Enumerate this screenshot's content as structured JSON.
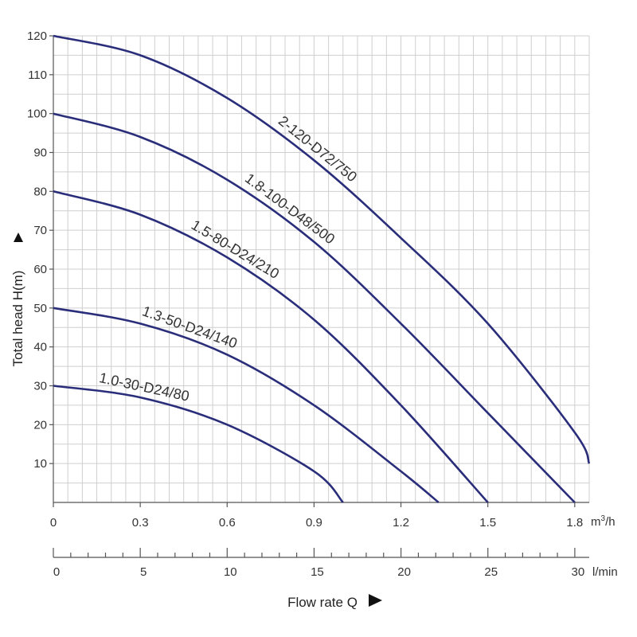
{
  "chart_data": {
    "type": "line",
    "title": "",
    "ylabel": "Total head H(m)",
    "xlabel": "Flow rate Q",
    "ylim": [
      0,
      120
    ],
    "xlim_m3h": [
      0,
      1.85
    ],
    "xlim_lmin": [
      0,
      30.83
    ],
    "y_ticks": [
      "10",
      "20",
      "30",
      "40",
      "50",
      "60",
      "70",
      "80",
      "90",
      "100",
      "110",
      "120"
    ],
    "x_ticks_m3h": [
      "0",
      "0.3",
      "0.6",
      "0.9",
      "1.2",
      "1.5",
      "1.8"
    ],
    "x_unit_m3h": "m",
    "x_unit_m3h_sup": "3",
    "x_unit_m3h_suffix": "/h",
    "x_ticks_lmin": [
      "0",
      "5",
      "10",
      "15",
      "20",
      "25",
      "30"
    ],
    "x_unit_lmin": "l/min",
    "grid": true,
    "series": [
      {
        "name": "2-120-D72/750",
        "x": [
          0,
          0.3,
          0.6,
          0.9,
          1.2,
          1.5,
          1.8,
          1.85
        ],
        "y": [
          120,
          115,
          104,
          88,
          68,
          46,
          18,
          10
        ]
      },
      {
        "name": "1.8-100-D48/500",
        "x": [
          0,
          0.3,
          0.6,
          0.9,
          1.2,
          1.5,
          1.8
        ],
        "y": [
          100,
          94,
          83,
          67,
          46,
          23,
          0
        ]
      },
      {
        "name": "1.5-80-D24/210",
        "x": [
          0,
          0.3,
          0.6,
          0.9,
          1.2,
          1.5
        ],
        "y": [
          80,
          74,
          63,
          47,
          25,
          0
        ]
      },
      {
        "name": "1.3-50-D24/140",
        "x": [
          0,
          0.3,
          0.6,
          0.9,
          1.2,
          1.33
        ],
        "y": [
          50,
          46,
          38,
          25,
          8,
          0
        ]
      },
      {
        "name": "1.0-30-D24/80",
        "x": [
          0,
          0.3,
          0.6,
          0.9,
          1.0
        ],
        "y": [
          30,
          27,
          20,
          8,
          0
        ]
      }
    ]
  }
}
